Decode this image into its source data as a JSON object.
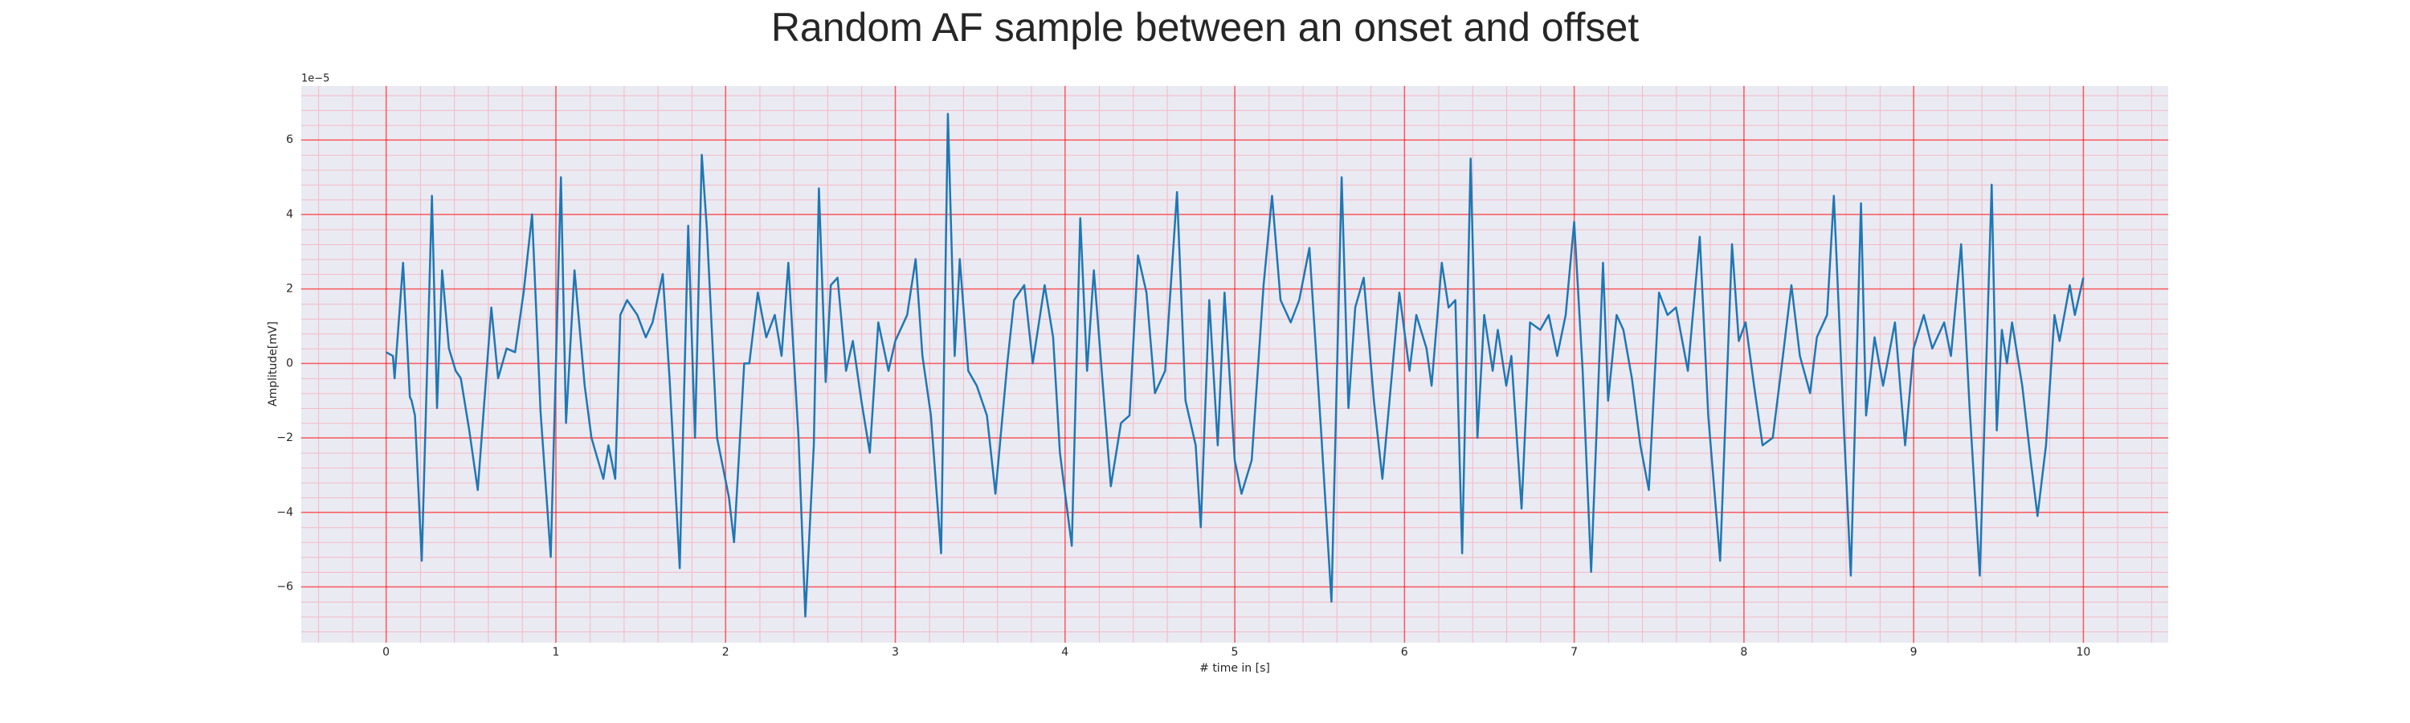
{
  "chart_data": {
    "type": "line",
    "title": "Random AF sample between an onset and offset",
    "x_label": "# time in [s]",
    "y_label": "Amplitude[mV]",
    "offset_label": "1e−5",
    "xlim": [
      -0.5,
      10.5
    ],
    "ylim": [
      -7.5,
      7.45
    ],
    "xticks": [
      0,
      1,
      2,
      3,
      4,
      5,
      6,
      7,
      8,
      9,
      10
    ],
    "yticks": [
      {
        "value": -6,
        "label": "−6"
      },
      {
        "value": -4,
        "label": "−4"
      },
      {
        "value": -2,
        "label": "−2"
      },
      0,
      2,
      4,
      6
    ],
    "grid": true,
    "minor_grid": true,
    "series": [
      {
        "color": "#1f77b4",
        "x": [
          0,
          0.04,
          0.05,
          0.1,
          0.14,
          0.15,
          0.17,
          0.21,
          0.27,
          0.3,
          0.33,
          0.37,
          0.41,
          0.44,
          0.49,
          0.54,
          0.62,
          0.66,
          0.71,
          0.76,
          0.81,
          0.86,
          0.91,
          0.97,
          1.03,
          1.06,
          1.11,
          1.17,
          1.21,
          1.28,
          1.31,
          1.35,
          1.38,
          1.42,
          1.48,
          1.53,
          1.57,
          1.63,
          1.67,
          1.73,
          1.78,
          1.82,
          1.86,
          1.89,
          1.95,
          2.02,
          2.05,
          2.11,
          2.14,
          2.19,
          2.24,
          2.29,
          2.33,
          2.37,
          2.43,
          2.47,
          2.52,
          2.55,
          2.59,
          2.62,
          2.66,
          2.71,
          2.75,
          2.8,
          2.85,
          2.9,
          2.96,
          3.0,
          3.07,
          3.12,
          3.16,
          3.21,
          3.27,
          3.31,
          3.35,
          3.38,
          3.43,
          3.48,
          3.54,
          3.59,
          3.66,
          3.7,
          3.76,
          3.81,
          3.88,
          3.93,
          3.97,
          4.04,
          4.09,
          4.13,
          4.17,
          4.23,
          4.27,
          4.33,
          4.38,
          4.43,
          4.48,
          4.53,
          4.59,
          4.66,
          4.71,
          4.77,
          4.8,
          4.85,
          4.9,
          4.94,
          5.0,
          5.04,
          5.1,
          5.17,
          5.22,
          5.27,
          5.33,
          5.38,
          5.44,
          5.51,
          5.57,
          5.63,
          5.67,
          5.71,
          5.76,
          5.82,
          5.87,
          5.92,
          5.97,
          6.03,
          6.07,
          6.13,
          6.16,
          6.22,
          6.26,
          6.3,
          6.34,
          6.39,
          6.43,
          6.47,
          6.52,
          6.55,
          6.6,
          6.63,
          6.69,
          6.74,
          6.8,
          6.85,
          6.9,
          6.95,
          7.0,
          7.05,
          7.1,
          7.17,
          7.2,
          7.25,
          7.29,
          7.34,
          7.39,
          7.44,
          7.5,
          7.55,
          7.6,
          7.67,
          7.74,
          7.79,
          7.86,
          7.93,
          7.97,
          8.01,
          8.06,
          8.11,
          8.17,
          8.23,
          8.28,
          8.33,
          8.39,
          8.43,
          8.49,
          8.53,
          8.59,
          8.63,
          8.69,
          8.72,
          8.77,
          8.82,
          8.89,
          8.95,
          9.0,
          9.06,
          9.11,
          9.18,
          9.22,
          9.28,
          9.33,
          9.39,
          9.46,
          9.49,
          9.52,
          9.55,
          9.58,
          9.64,
          9.69,
          9.73,
          9.78,
          9.83,
          9.86,
          9.92,
          9.95,
          10.0
        ],
        "values": [
          0.3,
          0.2,
          -0.4,
          2.7,
          -0.9,
          -1.0,
          -1.4,
          -5.3,
          4.5,
          -1.2,
          2.5,
          0.4,
          -0.2,
          -0.4,
          -1.8,
          -3.4,
          1.5,
          -0.4,
          0.4,
          0.3,
          1.9,
          4.0,
          -1.3,
          -5.2,
          5.0,
          -1.6,
          2.5,
          -0.6,
          -2.0,
          -3.1,
          -2.2,
          -3.1,
          1.3,
          1.7,
          1.3,
          0.7,
          1.1,
          2.4,
          -0.4,
          -5.5,
          3.7,
          -2.0,
          5.6,
          3.6,
          -2.0,
          -3.6,
          -4.8,
          0,
          0,
          1.9,
          0.7,
          1.3,
          0.2,
          2.7,
          -2.0,
          -6.8,
          -2.2,
          4.7,
          -0.5,
          2.1,
          2.3,
          -0.2,
          0.6,
          -1.0,
          -2.4,
          1.1,
          -0.2,
          0.6,
          1.3,
          2.8,
          0.2,
          -1.4,
          -5.1,
          6.7,
          0.2,
          2.8,
          -0.2,
          -0.6,
          -1.4,
          -3.5,
          0,
          1.7,
          2.1,
          0,
          2.1,
          0.7,
          -2.4,
          -4.9,
          3.9,
          -0.2,
          2.5,
          -1.0,
          -3.3,
          -1.6,
          -1.4,
          2.9,
          1.9,
          -0.8,
          -0.2,
          4.6,
          -1.0,
          -2.2,
          -4.4,
          1.7,
          -2.2,
          1.9,
          -2.6,
          -3.5,
          -2.6,
          2.1,
          4.5,
          1.7,
          1.1,
          1.7,
          3.1,
          -1.9,
          -6.4,
          5.0,
          -1.2,
          1.5,
          2.3,
          -1.0,
          -3.1,
          -0.6,
          1.9,
          -0.2,
          1.3,
          0.4,
          -0.6,
          2.7,
          1.5,
          1.7,
          -5.1,
          5.5,
          -2.0,
          1.3,
          -0.2,
          0.9,
          -0.6,
          0.2,
          -3.9,
          1.1,
          0.9,
          1.3,
          0.2,
          1.3,
          3.8,
          -0.2,
          -5.6,
          2.7,
          -1.0,
          1.3,
          0.9,
          -0.4,
          -2.2,
          -3.4,
          1.9,
          1.3,
          1.5,
          -0.2,
          3.4,
          -1.4,
          -5.3,
          3.2,
          0.6,
          1.1,
          -0.6,
          -2.2,
          -2.0,
          0.2,
          2.1,
          0.2,
          -0.8,
          0.7,
          1.3,
          4.5,
          -1.8,
          -5.7,
          4.3,
          -1.4,
          0.7,
          -0.6,
          1.1,
          -2.2,
          0.4,
          1.3,
          0.4,
          1.1,
          0.2,
          3.2,
          -1.2,
          -5.7,
          4.8,
          -1.8,
          0.9,
          0,
          1.1,
          -0.6,
          -2.6,
          -4.1,
          -2.2,
          1.3,
          0.6,
          2.1,
          1.3,
          2.3
        ]
      }
    ]
  }
}
